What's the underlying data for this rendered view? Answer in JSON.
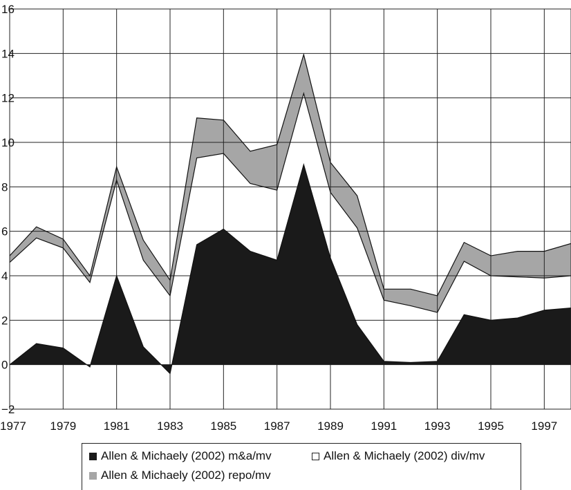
{
  "chart_data": {
    "type": "area",
    "x": [
      1977,
      1978,
      1979,
      1980,
      1981,
      1982,
      1983,
      1984,
      1985,
      1986,
      1987,
      1988,
      1989,
      1990,
      1991,
      1992,
      1993,
      1994,
      1995,
      1996,
      1997,
      1998
    ],
    "xlim": [
      1977,
      1998
    ],
    "ylim": [
      -2,
      16
    ],
    "x_ticks": [
      1977,
      1979,
      1981,
      1983,
      1985,
      1987,
      1989,
      1991,
      1993,
      1995,
      1997
    ],
    "x_tick_labels": [
      "1977",
      "1979",
      "1981",
      "1983",
      "1985",
      "1987",
      "1989",
      "1991",
      "1993",
      "1995",
      "1997"
    ],
    "y_ticks": [
      -2,
      0,
      2,
      4,
      6,
      8,
      10,
      12,
      14,
      16
    ],
    "y_tick_labels": [
      "−2",
      "0",
      "2",
      "4",
      "6",
      "8",
      "10",
      "12",
      "14",
      "16"
    ],
    "grid": true,
    "stacked": true,
    "legend_position": "bottom",
    "series": [
      {
        "name": "Allen & Michaely (2002) m&a/mv",
        "color": "#1a1a1a",
        "swatch": "#1a1a1a",
        "values": [
          0.0,
          0.95,
          0.75,
          -0.1,
          4.0,
          0.8,
          -0.4,
          5.4,
          6.1,
          5.1,
          4.7,
          9.0,
          4.8,
          1.8,
          0.15,
          0.1,
          0.15,
          2.25,
          2.0,
          2.1,
          2.45,
          2.55
        ]
      },
      {
        "name": "Allen & Michaely (2002) div/mv",
        "color": "#ffffff",
        "swatch": "#ffffff",
        "values": [
          4.6,
          4.75,
          4.5,
          3.8,
          4.3,
          3.9,
          3.5,
          3.9,
          3.4,
          3.05,
          3.15,
          3.2,
          2.95,
          4.35,
          2.75,
          2.55,
          2.2,
          2.4,
          2.0,
          1.85,
          1.45,
          1.45
        ]
      },
      {
        "name": "Allen & Michaely (2002) repo/mv",
        "color": "#a6a6a6",
        "swatch": "#a6a6a6",
        "values": [
          0.3,
          0.5,
          0.4,
          0.3,
          0.6,
          0.9,
          0.7,
          1.8,
          1.5,
          1.45,
          2.05,
          1.75,
          1.35,
          1.45,
          0.5,
          0.75,
          0.75,
          0.85,
          0.9,
          1.15,
          1.2,
          1.45
        ]
      }
    ]
  }
}
